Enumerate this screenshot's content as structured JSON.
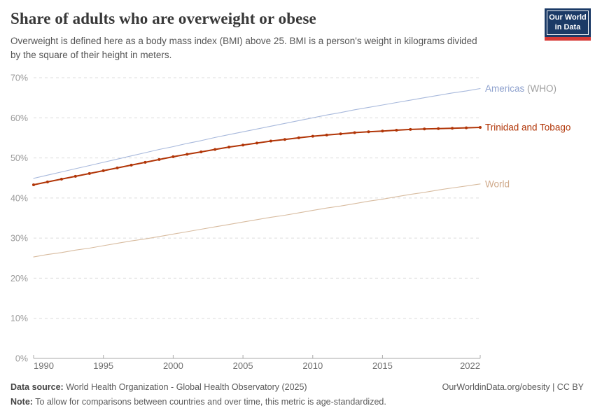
{
  "header": {
    "title": "Share of adults who are overweight or obese",
    "subtitle": "Overweight is defined here as a body mass index (BMI) above 25. BMI is a person's weight in kilograms divided\nby the square of their height in meters."
  },
  "logo": {
    "line1": "Our World",
    "line2": "in Data",
    "bg_color": "#1b3a66",
    "accent_color": "#d73a36"
  },
  "chart_data": {
    "type": "line",
    "title": "Share of adults who are overweight or obese",
    "xlabel": "",
    "ylabel": "",
    "x_range": [
      1990,
      2022
    ],
    "ylim": [
      0,
      70
    ],
    "grid": "horizontal-dashed",
    "legend_position": "end-of-line-labels",
    "y_ticks": [
      0,
      10,
      20,
      30,
      40,
      50,
      60,
      70
    ],
    "y_tick_suffix": "%",
    "x_ticks": [
      1990,
      1995,
      2000,
      2005,
      2010,
      2015,
      2022
    ],
    "years": [
      1990,
      1991,
      1992,
      1993,
      1994,
      1995,
      1996,
      1997,
      1998,
      1999,
      2000,
      2001,
      2002,
      2003,
      2004,
      2005,
      2006,
      2007,
      2008,
      2009,
      2010,
      2011,
      2012,
      2013,
      2014,
      2015,
      2016,
      2017,
      2018,
      2019,
      2020,
      2021,
      2022
    ],
    "axis_color": "#a9a9a9",
    "grid_color": "#dcdcdc",
    "x_label_color": "#6e6e6e",
    "y_label_color": "#9a9a9a",
    "series": [
      {
        "name": "Americas (WHO)",
        "label": "Americas",
        "label_suffix": " (WHO)",
        "color": "#a8b9dc",
        "label_color": "#8fa2ce",
        "suffix_color": "#9e9e9e",
        "markers": false,
        "line_width": 1.1,
        "values": [
          44.9,
          45.7,
          46.5,
          47.3,
          48.1,
          48.9,
          49.7,
          50.5,
          51.3,
          52.1,
          52.8,
          53.6,
          54.3,
          55.1,
          55.8,
          56.5,
          57.2,
          57.9,
          58.6,
          59.3,
          60.0,
          60.7,
          61.3,
          62.0,
          62.6,
          63.2,
          63.8,
          64.4,
          65.0,
          65.6,
          66.2,
          66.7,
          67.3
        ]
      },
      {
        "name": "Trinidad and Tobago",
        "label": "Trinidad and Tobago",
        "label_suffix": "",
        "color": "#b13507",
        "label_color": "#b13507",
        "suffix_color": "#b13507",
        "markers": true,
        "line_width": 2,
        "values": [
          43.3,
          44.0,
          44.7,
          45.4,
          46.1,
          46.8,
          47.5,
          48.2,
          48.9,
          49.6,
          50.3,
          50.9,
          51.5,
          52.1,
          52.7,
          53.2,
          53.7,
          54.2,
          54.6,
          55.0,
          55.4,
          55.7,
          56.0,
          56.3,
          56.5,
          56.7,
          56.9,
          57.1,
          57.2,
          57.3,
          57.4,
          57.5,
          57.6
        ]
      },
      {
        "name": "World",
        "label": "World",
        "label_suffix": "",
        "color": "#d8bca0",
        "label_color": "#cfa98a",
        "suffix_color": "#cfa98a",
        "markers": false,
        "line_width": 1.1,
        "values": [
          25.3,
          25.9,
          26.4,
          27.0,
          27.5,
          28.1,
          28.7,
          29.3,
          29.8,
          30.4,
          31.0,
          31.6,
          32.2,
          32.8,
          33.4,
          34.0,
          34.6,
          35.2,
          35.7,
          36.3,
          36.9,
          37.5,
          38.0,
          38.6,
          39.2,
          39.7,
          40.3,
          40.9,
          41.4,
          42.0,
          42.5,
          43.0,
          43.5
        ]
      }
    ]
  },
  "footer": {
    "datasource_label": "Data source:",
    "datasource_text": "World Health Organization - Global Health Observatory (2025)",
    "link": "OurWorldinData.org/obesity | CC BY",
    "note_label": "Note:",
    "note_text": "To allow for comparisons between countries and over time, this metric is age-standardized."
  }
}
